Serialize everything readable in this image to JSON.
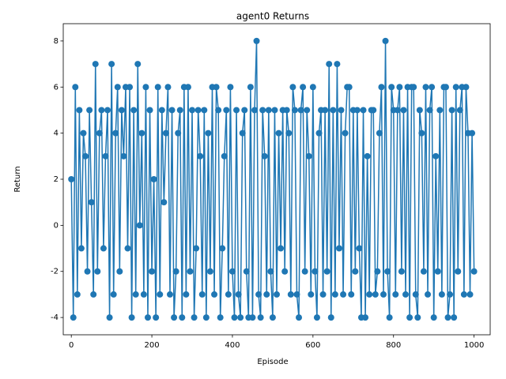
{
  "chart_data": {
    "type": "line",
    "title": "agent0 Returns",
    "x_label": "Episode",
    "y_label": "Return",
    "x": [
      0,
      5,
      10,
      15,
      20,
      25,
      30,
      35,
      40,
      45,
      50,
      55,
      60,
      65,
      70,
      75,
      80,
      85,
      90,
      95,
      100,
      105,
      110,
      115,
      120,
      125,
      130,
      135,
      140,
      145,
      150,
      155,
      160,
      165,
      170,
      175,
      180,
      185,
      190,
      195,
      200,
      205,
      210,
      215,
      220,
      225,
      230,
      235,
      240,
      245,
      250,
      255,
      260,
      265,
      270,
      275,
      280,
      285,
      290,
      295,
      300,
      305,
      310,
      315,
      320,
      325,
      330,
      335,
      340,
      345,
      350,
      355,
      360,
      365,
      370,
      375,
      380,
      385,
      390,
      395,
      400,
      405,
      410,
      415,
      420,
      425,
      430,
      435,
      440,
      445,
      450,
      455,
      460,
      465,
      470,
      475,
      480,
      485,
      490,
      495,
      500,
      505,
      510,
      515,
      520,
      525,
      530,
      535,
      540,
      545,
      550,
      555,
      560,
      565,
      570,
      575,
      580,
      585,
      590,
      595,
      600,
      605,
      610,
      615,
      620,
      625,
      630,
      635,
      640,
      645,
      650,
      655,
      660,
      665,
      670,
      675,
      680,
      685,
      690,
      695,
      700,
      705,
      710,
      715,
      720,
      725,
      730,
      735,
      740,
      745,
      750,
      755,
      760,
      765,
      770,
      775,
      780,
      785,
      790,
      795,
      800,
      805,
      810,
      815,
      820,
      825,
      830,
      835,
      840,
      845,
      850,
      855,
      860,
      865,
      870,
      875,
      880,
      885,
      890,
      895,
      900,
      905,
      910,
      915,
      920,
      925,
      930,
      935,
      940,
      945,
      950,
      955,
      960,
      965,
      970,
      975,
      980,
      985,
      990,
      995,
      1000
    ],
    "series": [
      {
        "name": "agent0",
        "color": "#1f77b4",
        "values": [
          2,
          -4,
          6,
          -3,
          5,
          -1,
          4,
          3,
          -2,
          5,
          1,
          -3,
          7,
          -2,
          4,
          5,
          -1,
          3,
          5,
          -4,
          7,
          -3,
          4,
          6,
          -2,
          5,
          3,
          6,
          -1,
          6,
          -4,
          5,
          -3,
          7,
          0,
          4,
          -3,
          6,
          -4,
          5,
          -2,
          2,
          -4,
          6,
          -3,
          5,
          1,
          4,
          6,
          -3,
          5,
          -4,
          -2,
          4,
          5,
          -4,
          6,
          -3,
          6,
          -2,
          5,
          -4,
          -1,
          5,
          3,
          -3,
          5,
          -4,
          4,
          -2,
          6,
          -3,
          6,
          5,
          -4,
          -1,
          3,
          5,
          -3,
          6,
          -2,
          -4,
          5,
          -3,
          -4,
          4,
          5,
          -2,
          -4,
          6,
          -4,
          5,
          8,
          -3,
          -4,
          5,
          3,
          -3,
          5,
          -2,
          -4,
          5,
          -3,
          4,
          -1,
          5,
          -2,
          5,
          4,
          -3,
          6,
          5,
          -3,
          -4,
          5,
          6,
          -2,
          5,
          3,
          -3,
          6,
          -2,
          -4,
          4,
          5,
          -3,
          5,
          -2,
          7,
          -4,
          5,
          -3,
          7,
          -1,
          5,
          -3,
          4,
          6,
          6,
          -3,
          5,
          -2,
          5,
          -1,
          -4,
          5,
          -4,
          3,
          -3,
          5,
          5,
          -3,
          -2,
          4,
          6,
          -3,
          8,
          -2,
          -4,
          6,
          5,
          -3,
          5,
          6,
          -2,
          5,
          -3,
          6,
          -4,
          6,
          6,
          -3,
          -4,
          5,
          4,
          -2,
          6,
          -3,
          5,
          6,
          -4,
          3,
          -2,
          5,
          -3,
          6,
          6,
          -4,
          -3,
          5,
          -4,
          6,
          -2,
          5,
          6,
          -3,
          6,
          4,
          -3,
          4,
          -2
        ]
      }
    ],
    "xlim": [
      -20,
      1040
    ],
    "ylim": [
      -4.75,
      8.75
    ],
    "xticks": [
      0,
      200,
      400,
      600,
      800,
      1000
    ],
    "yticks": [
      -4,
      -2,
      0,
      2,
      4,
      6,
      8
    ]
  }
}
